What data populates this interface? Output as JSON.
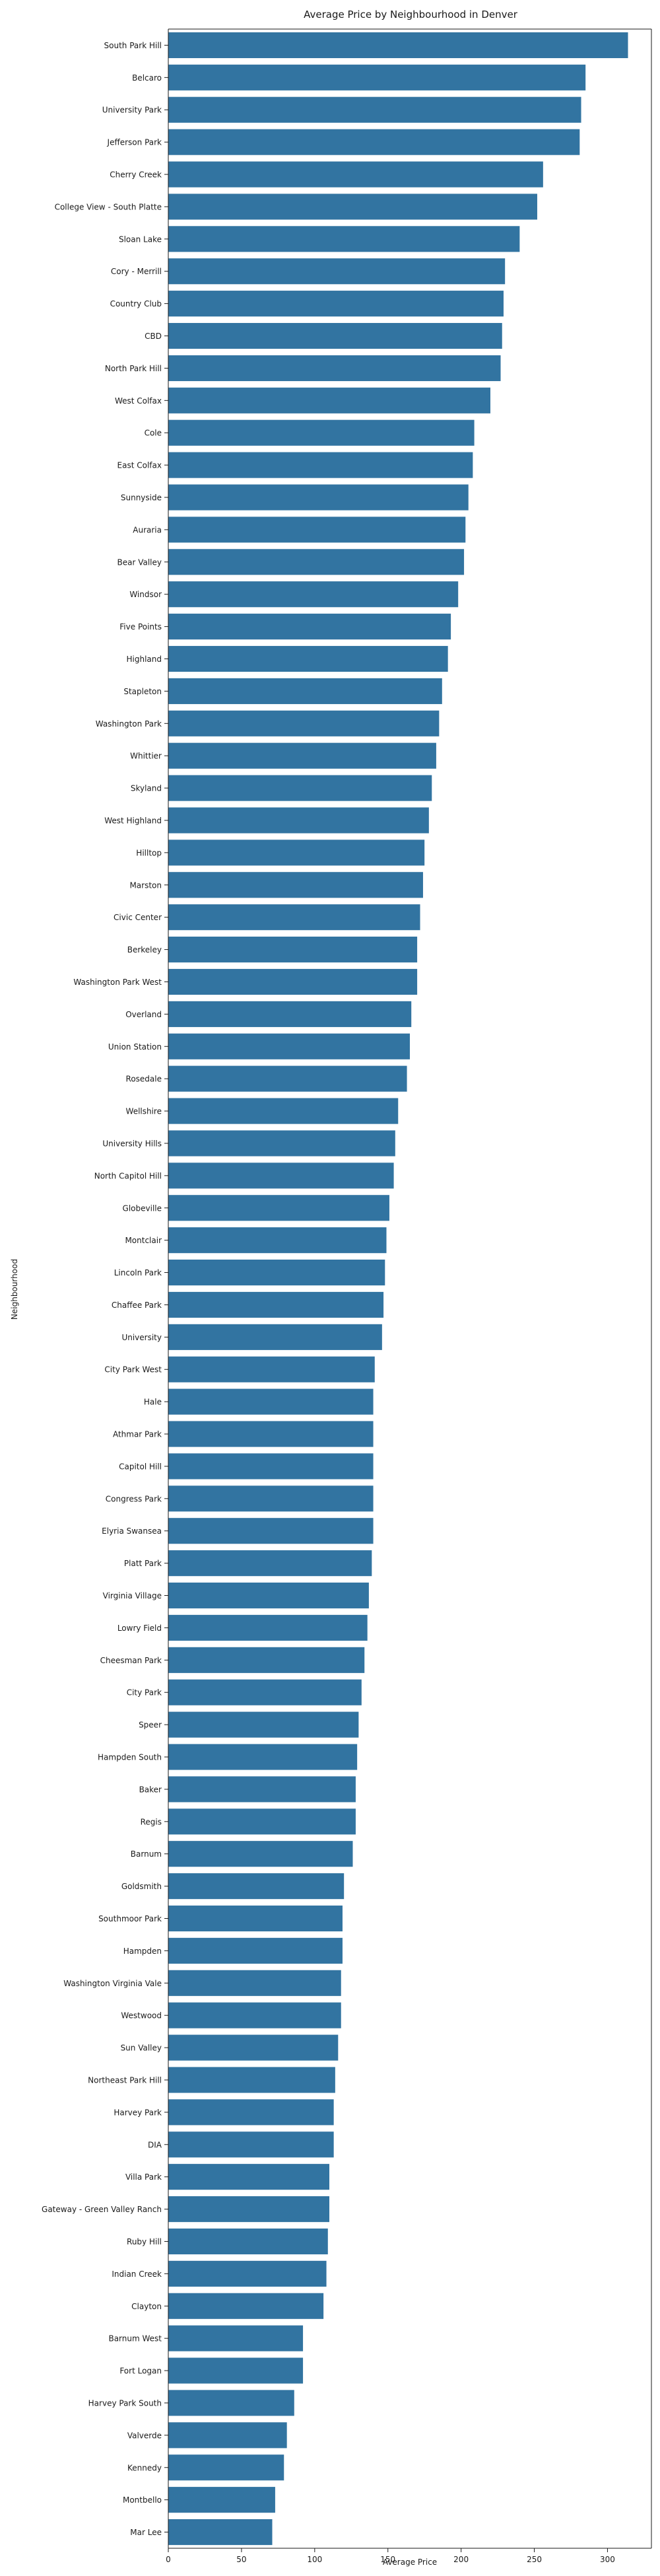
{
  "chart_data": {
    "type": "bar",
    "orientation": "horizontal",
    "title": "Average Price by Neighbourhood in Denver",
    "xlabel": "Average Price",
    "ylabel": "Neighbourhood",
    "xlim": [
      0,
      330
    ],
    "xticks": [
      0,
      50,
      100,
      150,
      200,
      250,
      300
    ],
    "grid": false,
    "bar_color": "#3274a1",
    "categories": [
      "South Park Hill",
      "Belcaro",
      "University Park",
      "Jefferson Park",
      "Cherry Creek",
      "College View - South Platte",
      "Sloan Lake",
      "Cory - Merrill",
      "Country Club",
      "CBD",
      "North Park Hill",
      "West Colfax",
      "Cole",
      "East Colfax",
      "Sunnyside",
      "Auraria",
      "Bear Valley",
      "Windsor",
      "Five Points",
      "Highland",
      "Stapleton",
      "Washington Park",
      "Whittier",
      "Skyland",
      "West Highland",
      "Hilltop",
      "Marston",
      "Civic Center",
      "Berkeley",
      "Washington Park West",
      "Overland",
      "Union Station",
      "Rosedale",
      "Wellshire",
      "University Hills",
      "North Capitol Hill",
      "Globeville",
      "Montclair",
      "Lincoln Park",
      "Chaffee Park",
      "University",
      "City Park West",
      "Hale",
      "Athmar Park",
      "Capitol Hill",
      "Congress Park",
      "Elyria Swansea",
      "Platt Park",
      "Virginia Village",
      "Lowry Field",
      "Cheesman Park",
      "City Park",
      "Speer",
      "Hampden South",
      "Baker",
      "Regis",
      "Barnum",
      "Goldsmith",
      "Southmoor Park",
      "Hampden",
      "Washington Virginia Vale",
      "Westwood",
      "Sun Valley",
      "Northeast Park Hill",
      "Harvey Park",
      "DIA",
      "Villa Park",
      "Gateway - Green Valley Ranch",
      "Ruby Hill",
      "Indian Creek",
      "Clayton",
      "Barnum West",
      "Fort Logan",
      "Harvey Park South",
      "Valverde",
      "Kennedy",
      "Montbello",
      "Mar Lee"
    ],
    "values": [
      314,
      285,
      282,
      281,
      256,
      252,
      240,
      230,
      229,
      228,
      227,
      220,
      209,
      208,
      205,
      203,
      202,
      198,
      193,
      191,
      187,
      185,
      183,
      180,
      178,
      175,
      174,
      172,
      170,
      170,
      166,
      165,
      163,
      157,
      155,
      154,
      151,
      149,
      148,
      147,
      146,
      141,
      140,
      140,
      140,
      140,
      140,
      139,
      137,
      136,
      134,
      132,
      130,
      129,
      128,
      128,
      126,
      120,
      119,
      119,
      118,
      118,
      116,
      114,
      113,
      113,
      110,
      110,
      109,
      108,
      106,
      92,
      92,
      86,
      81,
      79,
      73,
      71
    ]
  }
}
